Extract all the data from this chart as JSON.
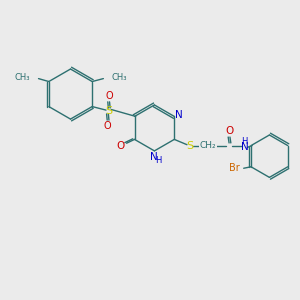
{
  "background_color": "#ebebeb",
  "colors": {
    "C": "#2d7070",
    "N": "#0000cc",
    "O": "#cc0000",
    "S": "#cccc00",
    "Br": "#cc6600",
    "bond": "#2d7070"
  },
  "figsize": [
    3.0,
    3.0
  ],
  "dpi": 100,
  "xlim": [
    0,
    10
  ],
  "ylim": [
    0,
    10
  ]
}
